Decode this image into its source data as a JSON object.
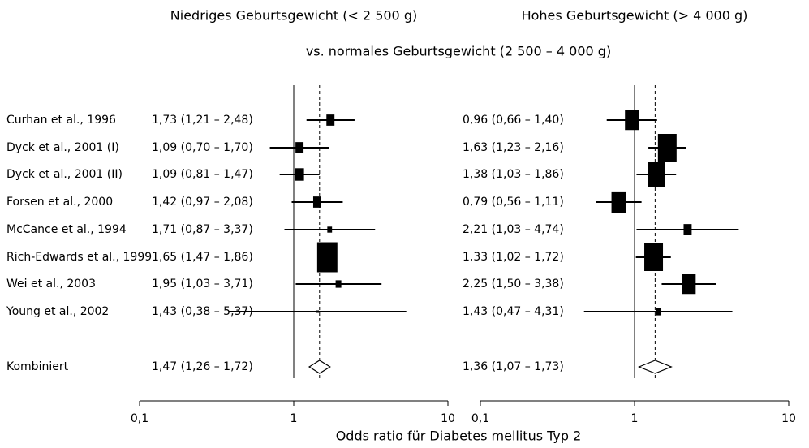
{
  "subtitle": "vs. normales Geburtsgewicht (2 500 – 4 000 g)",
  "xlabel": "Odds ratio für Diabetes mellitus Typ 2",
  "studies": [
    "Curhan et al., 1996",
    "Dyck et al., 2001 (I)",
    "Dyck et al., 2001 (II)",
    "Forsen et al., 2000",
    "McCance et al., 1994",
    "Rich-Edwards et al., 1999",
    "Wei et al., 2003",
    "Young et al., 2002"
  ],
  "combined_label": "Kombiniert",
  "chart_data": [
    {
      "type": "forest",
      "title": "Niedriges Geburtsgewicht (< 2 500 g)",
      "estimates": [
        1.73,
        1.09,
        1.09,
        1.42,
        1.71,
        1.65,
        1.95,
        1.43
      ],
      "lower": [
        1.21,
        0.7,
        0.81,
        0.97,
        0.87,
        1.47,
        1.03,
        0.38
      ],
      "upper": [
        2.48,
        1.7,
        1.47,
        2.08,
        3.37,
        1.86,
        3.71,
        5.37
      ],
      "value_labels": [
        "1,73 (1,21 – 2,48)",
        "1,09 (0,70 – 1,70)",
        "1,09 (0,81 – 1,47)",
        "1,42 (0,97 – 2,08)",
        "1,71 (0,87 – 3,37)",
        "1,65 (1,47 – 1,86)",
        "1,95 (1,03 – 3,71)",
        "1,43 (0,38 – 5,37)"
      ],
      "weights": [
        3,
        3,
        4,
        3,
        0.5,
        30,
        1,
        0
      ],
      "combined": {
        "estimate": 1.47,
        "lower": 1.26,
        "upper": 1.72,
        "value_label": "1,47 (1,26 – 1,72)"
      },
      "xlim": [
        0.1,
        10
      ],
      "xticks": [
        {
          "value": 0.1,
          "label": "0,1"
        },
        1,
        10
      ],
      "log_x": true,
      "color": "#000000"
    },
    {
      "type": "forest",
      "title": "Hohes Geburtsgewicht (> 4 000 g)",
      "estimates": [
        0.96,
        1.63,
        1.38,
        0.79,
        2.21,
        1.33,
        2.25,
        1.43
      ],
      "lower": [
        0.66,
        1.23,
        1.03,
        0.56,
        1.03,
        1.02,
        1.5,
        0.47
      ],
      "upper": [
        1.4,
        2.16,
        1.86,
        1.11,
        4.74,
        1.72,
        3.38,
        4.31
      ],
      "value_labels": [
        "0,96 (0,66 – 1,40)",
        "1,63 (1,23 – 2,16)",
        "1,38 (1,03 – 1,86)",
        "0,79 (0,56 – 1,11)",
        "2,21 (1,03 – 4,74)",
        "1,33 (1,02 – 1,72)",
        "2,25 (1,50 – 3,38)",
        "1,43 (0,47 – 4,31)"
      ],
      "weights": [
        12,
        25,
        20,
        14,
        3,
        25,
        12,
        1
      ],
      "combined": {
        "estimate": 1.36,
        "lower": 1.07,
        "upper": 1.73,
        "value_label": "1,36 (1,07 – 1,73)"
      },
      "xlim": [
        0.1,
        10
      ],
      "xticks": [
        {
          "value": 0.1,
          "label": "0,1"
        },
        1,
        10
      ],
      "log_x": true,
      "color": "#000000"
    }
  ]
}
